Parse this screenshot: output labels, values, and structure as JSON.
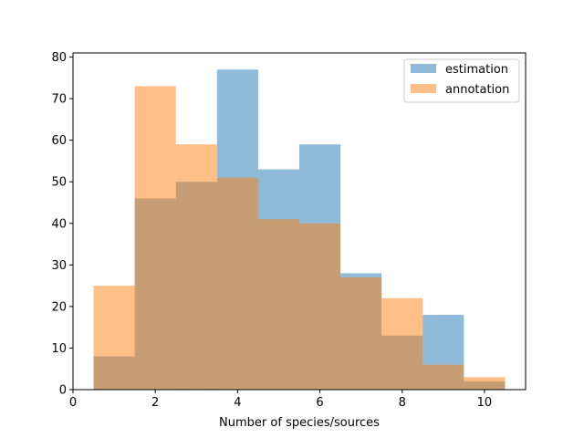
{
  "chart_data": {
    "type": "bar",
    "subtype": "histogram-overlay",
    "title": "",
    "xlabel": "Number of species/sources",
    "ylabel": "",
    "xlim": [
      0,
      11
    ],
    "ylim": [
      0,
      81
    ],
    "xticks": [
      0,
      2,
      4,
      6,
      8,
      10
    ],
    "yticks": [
      0,
      10,
      20,
      30,
      40,
      50,
      60,
      70,
      80
    ],
    "bin_width": 1,
    "bin_centers": [
      1,
      2,
      3,
      4,
      5,
      6,
      7,
      8,
      9,
      10
    ],
    "series": [
      {
        "name": "estimation",
        "color": "#1f77b4",
        "alpha": 0.5,
        "values": [
          8,
          46,
          50,
          77,
          53,
          59,
          28,
          13,
          18,
          2
        ]
      },
      {
        "name": "annotation",
        "color": "#ff7f0e",
        "alpha": 0.5,
        "values": [
          25,
          73,
          59,
          51,
          41,
          40,
          27,
          22,
          6,
          3
        ]
      }
    ],
    "grid": false,
    "legend_position": "top-right"
  }
}
